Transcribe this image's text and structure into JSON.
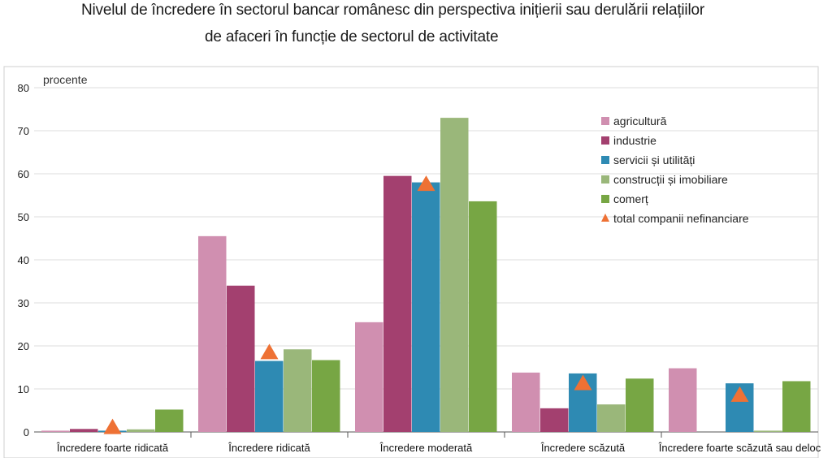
{
  "title": {
    "line1": "Nivelul de încredere în sectorul bancar românesc din perspectiva inițierii sau derulării relațiilor",
    "line2": "de afaceri în funcție de sectorul de activitate"
  },
  "chart_data": {
    "type": "bar",
    "title": "Nivelul de încredere în sectorul bancar românesc din perspectiva inițierii sau derulării relațiilor de afaceri în funcție de sectorul de activitate",
    "ylabel": "procente",
    "xlabel": "",
    "ylim": [
      0,
      80
    ],
    "yticks": [
      0,
      10,
      20,
      30,
      40,
      50,
      60,
      70,
      80
    ],
    "grid": true,
    "legend_position": "top-right",
    "categories": [
      "Încredere foarte ridicată",
      "Încredere ridicată",
      "Încredere moderată",
      "Încredere scăzută",
      "Încredere foarte scăzută sau deloc"
    ],
    "series": [
      {
        "name": "agricultură",
        "color": "#d08fb0",
        "values": [
          0.3,
          45.5,
          25.5,
          13.8,
          14.8
        ]
      },
      {
        "name": "industrie",
        "color": "#a3406f",
        "values": [
          0.7,
          34.0,
          59.5,
          5.5,
          0
        ]
      },
      {
        "name": "servicii și utilități",
        "color": "#2e8ab3",
        "values": [
          0.3,
          16.5,
          58.0,
          13.6,
          11.3
        ]
      },
      {
        "name": "construcții și imobiliare",
        "color": "#9ab77a",
        "values": [
          0.6,
          19.2,
          73.0,
          6.4,
          0.3
        ]
      },
      {
        "name": "comerț",
        "color": "#77a644",
        "values": [
          5.2,
          16.7,
          53.6,
          12.4,
          11.8
        ]
      }
    ],
    "markers": {
      "name": "total companii nefinanciare",
      "color": "#ee7134",
      "shape": "triangle",
      "values": [
        1.3,
        18.7,
        57.8,
        11.5,
        8.8
      ]
    }
  }
}
